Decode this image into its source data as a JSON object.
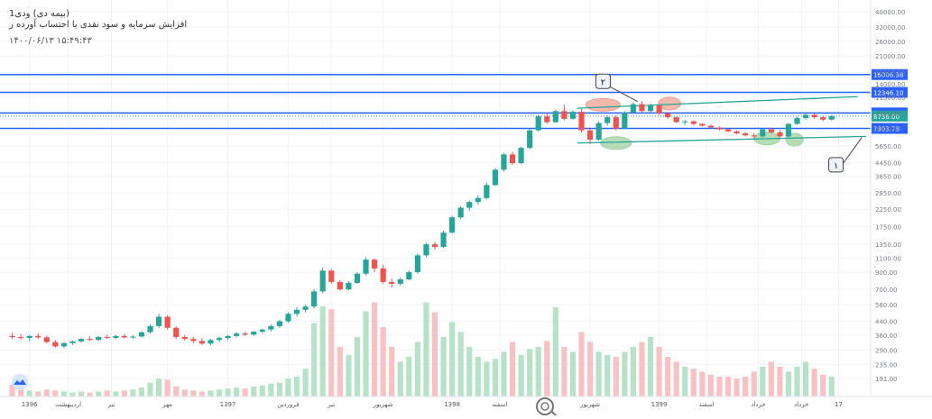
{
  "header": {
    "title": "(بیمه دی) ودی1",
    "subtitle": "افزایش سرمایه و سود نقدی با احتساب آورده ر",
    "date": "۱۴۰۰/۰۶/۱۳  ۱۵:۴۹:۴۳"
  },
  "chart_data": {
    "type": "candlestick",
    "scale": "log",
    "ylim": [
      155,
      45000
    ],
    "price_ticks": [
      191,
      235,
      290,
      360,
      440,
      560,
      700,
      900,
      1100,
      1350,
      1750,
      2250,
      2850,
      3650,
      4450,
      5650,
      7300,
      9100,
      11500,
      14000,
      16500,
      21000,
      26000,
      32000,
      40000
    ],
    "price_tick_labels": [
      "191.00",
      "235.00",
      "290.00",
      "360.00",
      "440.00",
      "560.00",
      "700.00",
      "900.00",
      "1100.00",
      "1350.00",
      "1750.00",
      "2250.00",
      "2850.00",
      "3650.00",
      "4450.00",
      "5650.00",
      "7300.00",
      "9100.00",
      "11500.00",
      "14000.00",
      "16500.00",
      "21000.00",
      "26000.00",
      "32000.00",
      "40000.00"
    ],
    "x_ticks": [
      {
        "label": "1396",
        "t": 0.03
      },
      {
        "label": "اردیبهشت",
        "t": 0.075
      },
      {
        "label": "تیر",
        "t": 0.125
      },
      {
        "label": "مهر",
        "t": 0.19
      },
      {
        "label": "1397",
        "t": 0.26
      },
      {
        "label": "فروردین",
        "t": 0.33
      },
      {
        "label": "تیر",
        "t": 0.38
      },
      {
        "label": "شهریور",
        "t": 0.44
      },
      {
        "label": "1398",
        "t": 0.52
      },
      {
        "label": "اسفند",
        "t": 0.575
      },
      {
        "label": "شهریور",
        "t": 0.68
      },
      {
        "label": "1399",
        "t": 0.76
      },
      {
        "label": "اسفند",
        "t": 0.815
      },
      {
        "label": "خرداد",
        "t": 0.875
      },
      {
        "label": "خرداد",
        "t": 0.925
      },
      {
        "label": "17",
        "t": 0.968
      }
    ],
    "horizontal_levels": [
      {
        "price": 16006.38,
        "label": "16006.38",
        "color": "#2962ff"
      },
      {
        "price": 12346.1,
        "label": "12346.10",
        "color": "#2962ff"
      },
      {
        "price": 9153.44,
        "label": "9153.44",
        "color": "#2962ff"
      },
      {
        "price": 7303.78,
        "label": "7303.78",
        "color": "#2962ff"
      }
    ],
    "last_price": {
      "price": 8736.0,
      "label": "8736.00",
      "color": "#26a69a"
    },
    "trendlines": [
      {
        "from": {
          "t": 0.665,
          "price": 9800
        },
        "to": {
          "t": 0.99,
          "price": 11600
        },
        "color": "#26a69a"
      },
      {
        "from": {
          "t": 0.665,
          "price": 5900
        },
        "to": {
          "t": 1.0,
          "price": 6500
        },
        "color": "#26a69a"
      }
    ],
    "callouts": [
      {
        "text": "۲",
        "box": {
          "t": 0.695,
          "price": 14500
        },
        "target": {
          "t": 0.735,
          "price": 10800
        }
      },
      {
        "text": "۱",
        "box": {
          "t": 0.965,
          "price": 4300
        },
        "target": {
          "t": 0.995,
          "price": 6400
        }
      }
    ],
    "highlights": [
      {
        "t": 0.695,
        "price": 10300,
        "rt": 0.02,
        "color": "#f0a090"
      },
      {
        "t": 0.772,
        "price": 10500,
        "rt": 0.013,
        "color": "#f0a090"
      },
      {
        "t": 0.71,
        "price": 5900,
        "rt": 0.018,
        "color": "#9fd29f"
      },
      {
        "t": 0.885,
        "price": 6300,
        "rt": 0.015,
        "color": "#9fd29f"
      },
      {
        "t": 0.917,
        "price": 6200,
        "rt": 0.01,
        "color": "#9fd29f"
      }
    ],
    "up_color": "#26a69a",
    "down_color": "#ef5350",
    "vol_up_color": "#b6e2c8",
    "vol_down_color": "#f8c1c4",
    "series": [
      {
        "t": 0.01,
        "o": 355,
        "h": 370,
        "l": 340,
        "c": 350
      },
      {
        "t": 0.02,
        "o": 350,
        "h": 365,
        "l": 335,
        "c": 345
      },
      {
        "t": 0.03,
        "o": 345,
        "h": 360,
        "l": 330,
        "c": 355
      },
      {
        "t": 0.04,
        "o": 355,
        "h": 370,
        "l": 340,
        "c": 348
      },
      {
        "t": 0.05,
        "o": 348,
        "h": 358,
        "l": 320,
        "c": 325
      },
      {
        "t": 0.06,
        "o": 325,
        "h": 335,
        "l": 300,
        "c": 305
      },
      {
        "t": 0.07,
        "o": 305,
        "h": 325,
        "l": 298,
        "c": 320
      },
      {
        "t": 0.08,
        "o": 320,
        "h": 332,
        "l": 312,
        "c": 328
      },
      {
        "t": 0.09,
        "o": 328,
        "h": 345,
        "l": 322,
        "c": 340
      },
      {
        "t": 0.1,
        "o": 340,
        "h": 352,
        "l": 330,
        "c": 335
      },
      {
        "t": 0.11,
        "o": 335,
        "h": 355,
        "l": 330,
        "c": 350
      },
      {
        "t": 0.12,
        "o": 350,
        "h": 362,
        "l": 340,
        "c": 345
      },
      {
        "t": 0.13,
        "o": 345,
        "h": 360,
        "l": 338,
        "c": 355
      },
      {
        "t": 0.14,
        "o": 355,
        "h": 365,
        "l": 342,
        "c": 348
      },
      {
        "t": 0.15,
        "o": 348,
        "h": 360,
        "l": 340,
        "c": 352
      },
      {
        "t": 0.16,
        "o": 352,
        "h": 380,
        "l": 348,
        "c": 375
      },
      {
        "t": 0.17,
        "o": 375,
        "h": 420,
        "l": 368,
        "c": 410
      },
      {
        "t": 0.18,
        "o": 410,
        "h": 490,
        "l": 400,
        "c": 470
      },
      {
        "t": 0.19,
        "o": 470,
        "h": 480,
        "l": 390,
        "c": 400
      },
      {
        "t": 0.2,
        "o": 400,
        "h": 410,
        "l": 340,
        "c": 350
      },
      {
        "t": 0.21,
        "o": 350,
        "h": 360,
        "l": 330,
        "c": 340
      },
      {
        "t": 0.22,
        "o": 340,
        "h": 350,
        "l": 320,
        "c": 330
      },
      {
        "t": 0.23,
        "o": 330,
        "h": 345,
        "l": 312,
        "c": 318
      },
      {
        "t": 0.24,
        "o": 318,
        "h": 340,
        "l": 310,
        "c": 335
      },
      {
        "t": 0.25,
        "o": 335,
        "h": 352,
        "l": 325,
        "c": 345
      },
      {
        "t": 0.26,
        "o": 345,
        "h": 362,
        "l": 335,
        "c": 355
      },
      {
        "t": 0.27,
        "o": 355,
        "h": 375,
        "l": 348,
        "c": 368
      },
      {
        "t": 0.28,
        "o": 368,
        "h": 380,
        "l": 355,
        "c": 362
      },
      {
        "t": 0.29,
        "o": 362,
        "h": 382,
        "l": 355,
        "c": 378
      },
      {
        "t": 0.3,
        "o": 378,
        "h": 395,
        "l": 370,
        "c": 390
      },
      {
        "t": 0.31,
        "o": 390,
        "h": 420,
        "l": 380,
        "c": 410
      },
      {
        "t": 0.32,
        "o": 410,
        "h": 450,
        "l": 400,
        "c": 440
      },
      {
        "t": 0.33,
        "o": 440,
        "h": 500,
        "l": 430,
        "c": 490
      },
      {
        "t": 0.34,
        "o": 490,
        "h": 540,
        "l": 470,
        "c": 520
      },
      {
        "t": 0.35,
        "o": 520,
        "h": 560,
        "l": 500,
        "c": 545
      },
      {
        "t": 0.36,
        "o": 545,
        "h": 700,
        "l": 530,
        "c": 680
      },
      {
        "t": 0.37,
        "o": 680,
        "h": 960,
        "l": 660,
        "c": 920
      },
      {
        "t": 0.38,
        "o": 920,
        "h": 940,
        "l": 760,
        "c": 780
      },
      {
        "t": 0.39,
        "o": 780,
        "h": 800,
        "l": 690,
        "c": 700
      },
      {
        "t": 0.4,
        "o": 700,
        "h": 790,
        "l": 690,
        "c": 770
      },
      {
        "t": 0.41,
        "o": 770,
        "h": 900,
        "l": 760,
        "c": 880
      },
      {
        "t": 0.42,
        "o": 880,
        "h": 1120,
        "l": 860,
        "c": 1080
      },
      {
        "t": 0.43,
        "o": 1080,
        "h": 1100,
        "l": 900,
        "c": 950
      },
      {
        "t": 0.44,
        "o": 950,
        "h": 1000,
        "l": 760,
        "c": 780
      },
      {
        "t": 0.45,
        "o": 780,
        "h": 820,
        "l": 720,
        "c": 760
      },
      {
        "t": 0.46,
        "o": 760,
        "h": 830,
        "l": 740,
        "c": 810
      },
      {
        "t": 0.47,
        "o": 810,
        "h": 920,
        "l": 800,
        "c": 900
      },
      {
        "t": 0.48,
        "o": 900,
        "h": 1180,
        "l": 880,
        "c": 1150
      },
      {
        "t": 0.49,
        "o": 1150,
        "h": 1380,
        "l": 1120,
        "c": 1350
      },
      {
        "t": 0.5,
        "o": 1350,
        "h": 1400,
        "l": 1250,
        "c": 1300
      },
      {
        "t": 0.51,
        "o": 1300,
        "h": 1650,
        "l": 1280,
        "c": 1600
      },
      {
        "t": 0.52,
        "o": 1600,
        "h": 2050,
        "l": 1580,
        "c": 2000
      },
      {
        "t": 0.53,
        "o": 2000,
        "h": 2350,
        "l": 1950,
        "c": 2300
      },
      {
        "t": 0.54,
        "o": 2300,
        "h": 2550,
        "l": 2200,
        "c": 2500
      },
      {
        "t": 0.55,
        "o": 2500,
        "h": 2750,
        "l": 2400,
        "c": 2650
      },
      {
        "t": 0.56,
        "o": 2650,
        "h": 3300,
        "l": 2600,
        "c": 3200
      },
      {
        "t": 0.57,
        "o": 3200,
        "h": 4100,
        "l": 3150,
        "c": 4000
      },
      {
        "t": 0.58,
        "o": 4000,
        "h": 5100,
        "l": 3900,
        "c": 5000
      },
      {
        "t": 0.59,
        "o": 5000,
        "h": 5200,
        "l": 4300,
        "c": 4400
      },
      {
        "t": 0.6,
        "o": 4400,
        "h": 5600,
        "l": 4350,
        "c": 5500
      },
      {
        "t": 0.61,
        "o": 5500,
        "h": 7300,
        "l": 5400,
        "c": 7100
      },
      {
        "t": 0.62,
        "o": 7100,
        "h": 8900,
        "l": 7000,
        "c": 8700
      },
      {
        "t": 0.63,
        "o": 8700,
        "h": 9200,
        "l": 7800,
        "c": 8000
      },
      {
        "t": 0.64,
        "o": 8000,
        "h": 9600,
        "l": 7900,
        "c": 9400
      },
      {
        "t": 0.65,
        "o": 9400,
        "h": 10300,
        "l": 8200,
        "c": 8400
      },
      {
        "t": 0.66,
        "o": 8400,
        "h": 9500,
        "l": 8300,
        "c": 9300
      },
      {
        "t": 0.67,
        "o": 9300,
        "h": 9700,
        "l": 6900,
        "c": 7100
      },
      {
        "t": 0.68,
        "o": 7100,
        "h": 7400,
        "l": 5800,
        "c": 6200
      },
      {
        "t": 0.69,
        "o": 6200,
        "h": 8100,
        "l": 6100,
        "c": 7900
      },
      {
        "t": 0.7,
        "o": 7900,
        "h": 8800,
        "l": 7600,
        "c": 8600
      },
      {
        "t": 0.71,
        "o": 8600,
        "h": 8800,
        "l": 7100,
        "c": 7300
      },
      {
        "t": 0.72,
        "o": 7300,
        "h": 9400,
        "l": 7200,
        "c": 9200
      },
      {
        "t": 0.73,
        "o": 9200,
        "h": 10700,
        "l": 9100,
        "c": 10400
      },
      {
        "t": 0.74,
        "o": 10400,
        "h": 10900,
        "l": 9200,
        "c": 9400
      },
      {
        "t": 0.75,
        "o": 9400,
        "h": 10500,
        "l": 9300,
        "c": 10200
      },
      {
        "t": 0.76,
        "o": 10200,
        "h": 10300,
        "l": 8900,
        "c": 9100
      },
      {
        "t": 0.77,
        "o": 9100,
        "h": 9300,
        "l": 8400,
        "c": 8600
      },
      {
        "t": 0.78,
        "o": 8600,
        "h": 8700,
        "l": 7900,
        "c": 8000
      },
      {
        "t": 0.79,
        "o": 8000,
        "h": 8300,
        "l": 7700,
        "c": 8100
      },
      {
        "t": 0.8,
        "o": 8100,
        "h": 8200,
        "l": 7700,
        "c": 7800
      },
      {
        "t": 0.81,
        "o": 7800,
        "h": 7900,
        "l": 7500,
        "c": 7600
      },
      {
        "t": 0.82,
        "o": 7600,
        "h": 7700,
        "l": 7300,
        "c": 7400
      },
      {
        "t": 0.83,
        "o": 7400,
        "h": 7500,
        "l": 7100,
        "c": 7200
      },
      {
        "t": 0.84,
        "o": 7200,
        "h": 7300,
        "l": 6900,
        "c": 7000
      },
      {
        "t": 0.85,
        "o": 7000,
        "h": 7100,
        "l": 6700,
        "c": 6800
      },
      {
        "t": 0.86,
        "o": 6800,
        "h": 6900,
        "l": 6500,
        "c": 6600
      },
      {
        "t": 0.87,
        "o": 6600,
        "h": 6800,
        "l": 6300,
        "c": 6500
      },
      {
        "t": 0.88,
        "o": 6500,
        "h": 7300,
        "l": 6400,
        "c": 7200
      },
      {
        "t": 0.89,
        "o": 7200,
        "h": 7400,
        "l": 6800,
        "c": 6900
      },
      {
        "t": 0.9,
        "o": 6900,
        "h": 7100,
        "l": 6400,
        "c": 6500
      },
      {
        "t": 0.91,
        "o": 6500,
        "h": 7900,
        "l": 6400,
        "c": 7800
      },
      {
        "t": 0.92,
        "o": 7800,
        "h": 8700,
        "l": 7700,
        "c": 8500
      },
      {
        "t": 0.93,
        "o": 8500,
        "h": 9100,
        "l": 8300,
        "c": 8900
      },
      {
        "t": 0.94,
        "o": 8900,
        "h": 9100,
        "l": 8400,
        "c": 8600
      },
      {
        "t": 0.95,
        "o": 8600,
        "h": 8800,
        "l": 8100,
        "c": 8300
      },
      {
        "t": 0.96,
        "o": 8300,
        "h": 8900,
        "l": 8200,
        "c": 8736
      }
    ],
    "volume": [
      0.12,
      0.08,
      0.06,
      0.05,
      0.07,
      0.06,
      0.05,
      0.04,
      0.05,
      0.04,
      0.05,
      0.06,
      0.05,
      0.06,
      0.07,
      0.09,
      0.14,
      0.18,
      0.17,
      0.1,
      0.07,
      0.06,
      0.05,
      0.06,
      0.07,
      0.08,
      0.09,
      0.08,
      0.1,
      0.11,
      0.13,
      0.14,
      0.18,
      0.2,
      0.28,
      0.74,
      0.91,
      0.88,
      0.5,
      0.42,
      0.6,
      0.86,
      0.95,
      0.7,
      0.5,
      0.35,
      0.4,
      0.55,
      0.95,
      0.85,
      0.6,
      0.75,
      0.65,
      0.5,
      0.4,
      0.35,
      0.38,
      0.45,
      0.55,
      0.42,
      0.48,
      0.5,
      0.56,
      0.9,
      0.5,
      0.45,
      0.65,
      0.55,
      0.45,
      0.42,
      0.4,
      0.45,
      0.5,
      0.55,
      0.6,
      0.5,
      0.4,
      0.35,
      0.3,
      0.28,
      0.25,
      0.22,
      0.2,
      0.2,
      0.18,
      0.2,
      0.25,
      0.3,
      0.35,
      0.3,
      0.25,
      0.3,
      0.35,
      0.28,
      0.22,
      0.2
    ]
  }
}
